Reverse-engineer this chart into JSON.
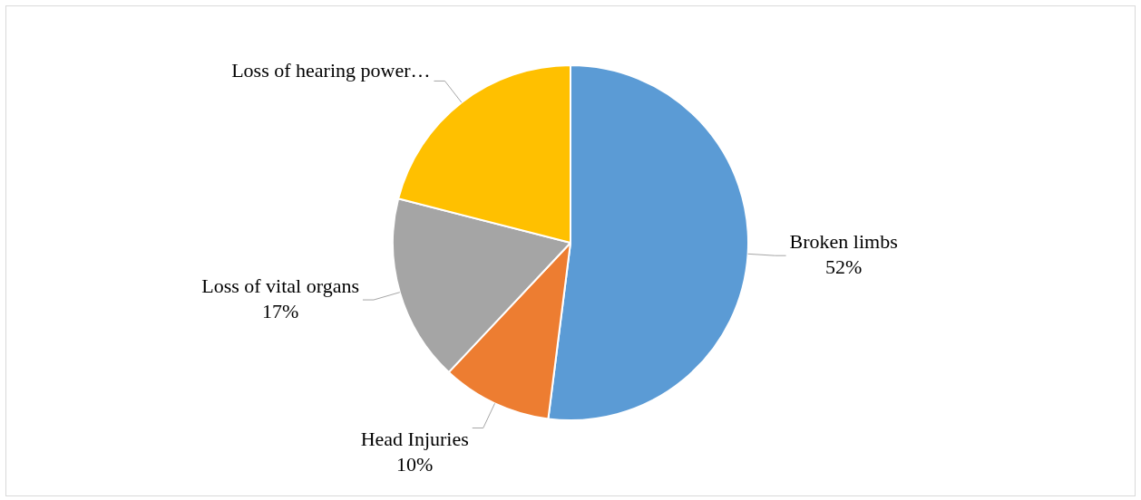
{
  "chart_data": {
    "type": "pie",
    "categories": [
      "Broken limbs",
      "Head Injuries",
      "Loss of vital organs",
      "Loss of hearing power…"
    ],
    "values": [
      52,
      10,
      17,
      21
    ],
    "colors": [
      "#5b9bd5",
      "#ed7d31",
      "#a5a5a5",
      "#ffc000"
    ],
    "value_labels": [
      "52%",
      "10%",
      "17%",
      null
    ],
    "legend": false
  }
}
